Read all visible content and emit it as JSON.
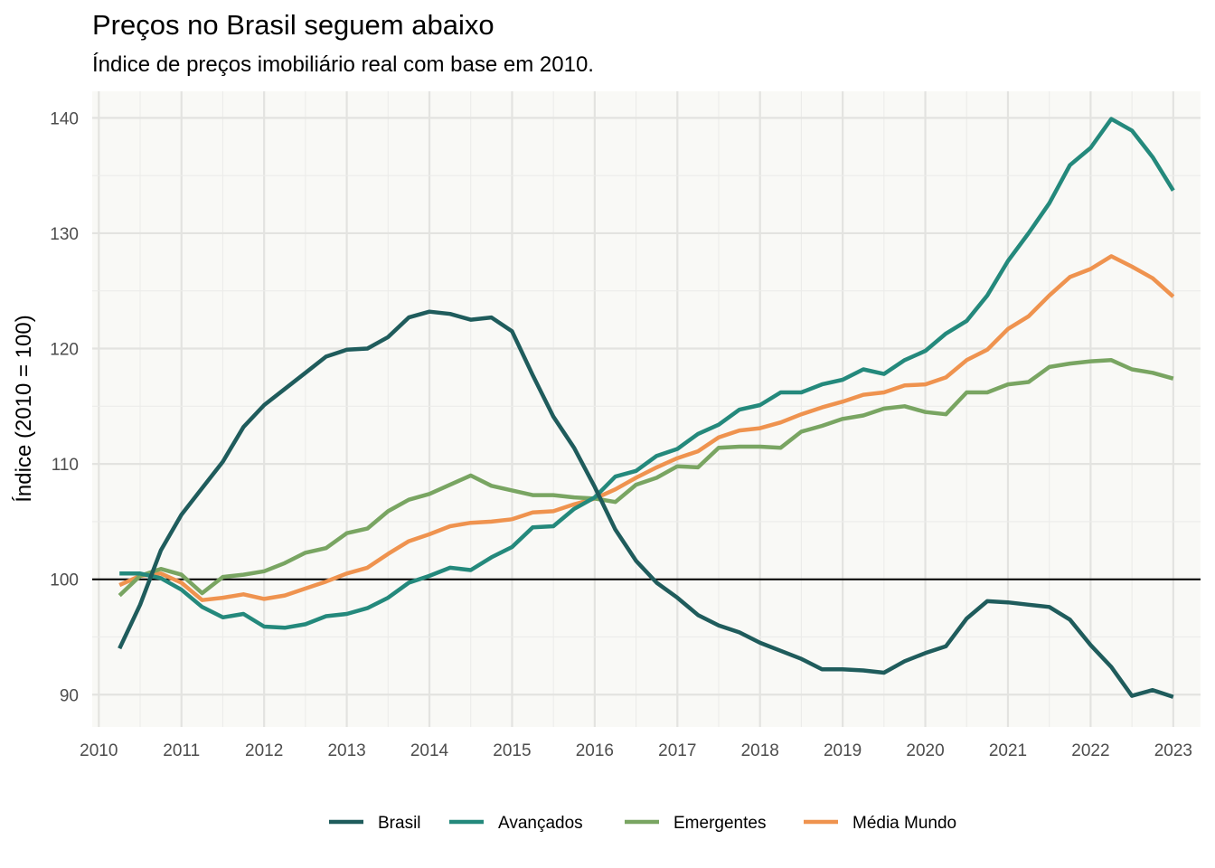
{
  "chart_data": {
    "type": "line",
    "title": "Preços no Brasil seguem abaixo",
    "subtitle": "Índice de preços imobiliário real com base em 2010.",
    "ylabel": "Índice (2010 = 100)",
    "xlabel": "",
    "xlim": [
      2009.92,
      2023.33
    ],
    "ylim": [
      87.2,
      142.3
    ],
    "x_ticks": [
      2010,
      2011,
      2012,
      2013,
      2014,
      2015,
      2016,
      2017,
      2018,
      2019,
      2020,
      2021,
      2022,
      2023
    ],
    "y_ticks": [
      90,
      100,
      110,
      120,
      130,
      140
    ],
    "reference_line": 100,
    "grid": true,
    "legend_position": "bottom",
    "x": [
      2010.25,
      2010.5,
      2010.75,
      2011.0,
      2011.25,
      2011.5,
      2011.75,
      2012.0,
      2012.25,
      2012.5,
      2012.75,
      2013.0,
      2013.25,
      2013.5,
      2013.75,
      2014.0,
      2014.25,
      2014.5,
      2014.75,
      2015.0,
      2015.25,
      2015.5,
      2015.75,
      2016.0,
      2016.25,
      2016.5,
      2016.75,
      2017.0,
      2017.25,
      2017.5,
      2017.75,
      2018.0,
      2018.25,
      2018.5,
      2018.75,
      2019.0,
      2019.25,
      2019.5,
      2019.75,
      2020.0,
      2020.25,
      2020.5,
      2020.75,
      2021.0,
      2021.25,
      2021.5,
      2021.75,
      2022.0,
      2022.25,
      2022.5,
      2022.75,
      2023.0
    ],
    "series": [
      {
        "name": "Brasil",
        "color": "#1f5c5c",
        "values": [
          94.0,
          97.8,
          102.5,
          105.6,
          107.9,
          110.2,
          113.2,
          115.1,
          116.5,
          117.9,
          119.3,
          119.9,
          120.0,
          121.0,
          122.7,
          123.2,
          123.0,
          122.5,
          122.7,
          121.5,
          117.7,
          114.1,
          111.4,
          108.0,
          104.3,
          101.6,
          99.7,
          98.4,
          96.9,
          96.0,
          95.4,
          94.5,
          93.8,
          93.1,
          92.2,
          92.2,
          92.1,
          91.9,
          92.9,
          93.6,
          94.2,
          96.6,
          98.1,
          98.0,
          97.8,
          97.6,
          96.5,
          94.3,
          92.4,
          89.9,
          90.4,
          89.8
        ]
      },
      {
        "name": "Avançados",
        "color": "#24897c",
        "values": [
          100.5,
          100.5,
          100.1,
          99.1,
          97.6,
          96.7,
          97.0,
          95.9,
          95.8,
          96.1,
          96.8,
          97.0,
          97.5,
          98.4,
          99.7,
          100.3,
          101.0,
          100.8,
          101.9,
          102.8,
          104.5,
          104.6,
          106.1,
          107.1,
          108.9,
          109.4,
          110.7,
          111.3,
          112.6,
          113.4,
          114.7,
          115.1,
          116.2,
          116.2,
          116.9,
          117.3,
          118.2,
          117.8,
          119.0,
          119.8,
          121.3,
          122.4,
          124.6,
          127.6,
          130.0,
          132.6,
          135.9,
          137.4,
          139.9,
          138.9,
          136.6,
          133.7
        ]
      },
      {
        "name": "Emergentes",
        "color": "#79a562",
        "values": [
          98.6,
          100.3,
          100.9,
          100.4,
          98.8,
          100.2,
          100.4,
          100.7,
          101.4,
          102.3,
          102.7,
          104.0,
          104.4,
          105.9,
          106.9,
          107.4,
          108.2,
          109.0,
          108.1,
          107.7,
          107.3,
          107.3,
          107.1,
          107.0,
          106.7,
          108.2,
          108.8,
          109.8,
          109.7,
          111.4,
          111.5,
          111.5,
          111.4,
          112.8,
          113.3,
          113.9,
          114.2,
          114.8,
          115.0,
          114.5,
          114.3,
          116.2,
          116.2,
          116.9,
          117.1,
          118.4,
          118.7,
          118.9,
          119.0,
          118.2,
          117.9,
          117.4
        ]
      },
      {
        "name": "Média Mundo",
        "color": "#ef934f",
        "values": [
          99.5,
          100.3,
          100.5,
          99.7,
          98.2,
          98.4,
          98.7,
          98.3,
          98.6,
          99.2,
          99.8,
          100.5,
          101.0,
          102.2,
          103.3,
          103.9,
          104.6,
          104.9,
          105.0,
          105.2,
          105.8,
          105.9,
          106.5,
          107.0,
          107.8,
          108.8,
          109.7,
          110.5,
          111.1,
          112.3,
          112.9,
          113.1,
          113.6,
          114.3,
          114.9,
          115.4,
          116.0,
          116.2,
          116.8,
          116.9,
          117.5,
          119.0,
          119.9,
          121.7,
          122.8,
          124.6,
          126.2,
          126.9,
          128.0,
          127.1,
          126.1,
          124.5
        ]
      }
    ]
  }
}
